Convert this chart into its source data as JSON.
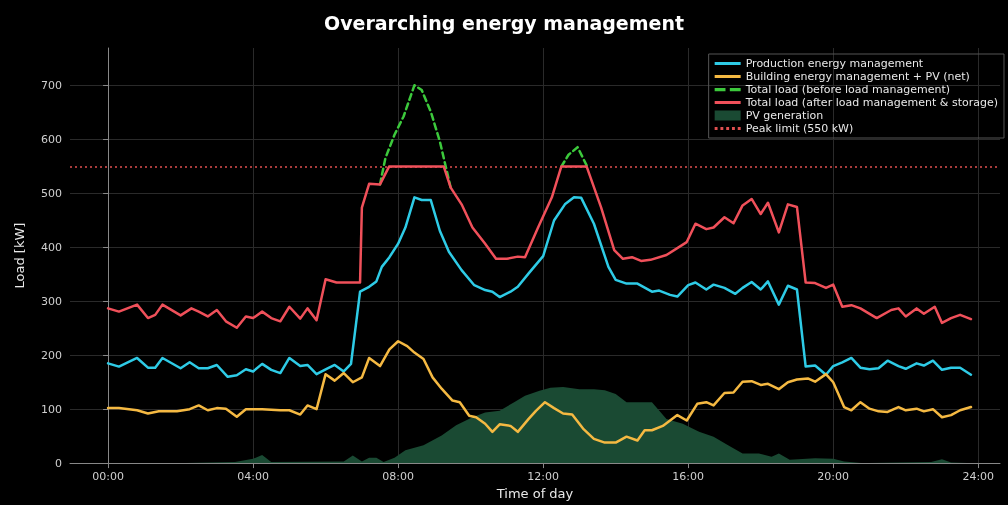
{
  "chart_data": {
    "type": "line",
    "title": "Overarching energy management",
    "xlabel": "Time of day",
    "ylabel": "Load [kW]",
    "xlim": [
      -1.05,
      24.6
    ],
    "ylim": [
      0,
      770
    ],
    "xticks": [
      {
        "value": 0,
        "label": "00:00"
      },
      {
        "value": 4,
        "label": "04:00"
      },
      {
        "value": 8,
        "label": "08:00"
      },
      {
        "value": 12,
        "label": "12:00"
      },
      {
        "value": 16,
        "label": "16:00"
      },
      {
        "value": 20,
        "label": "20:00"
      },
      {
        "value": 24,
        "label": "24:00"
      }
    ],
    "yticks": [
      0,
      100,
      200,
      300,
      400,
      500,
      600,
      700
    ],
    "grid": true,
    "legend": "top right",
    "marker": "none",
    "ref_lines": [
      {
        "axis": "y",
        "value": 550,
        "label": "Peak limit (550 kW)",
        "color": "#e05050",
        "line_style": "dotted"
      }
    ],
    "series": [
      {
        "name": "Production energy management",
        "type": "line",
        "color": "#2ecbe6",
        "x": [
          0,
          0.3,
          0.8,
          1.1,
          1.3,
          1.5,
          2.0,
          2.25,
          2.5,
          2.75,
          3.0,
          3.3,
          3.55,
          3.8,
          4.0,
          4.25,
          4.5,
          4.75,
          5.0,
          5.3,
          5.5,
          5.75,
          6.0,
          6.25,
          6.5,
          6.7,
          6.95,
          7.2,
          7.4,
          7.55,
          7.76,
          8.0,
          8.2,
          8.45,
          8.65,
          8.9,
          9.15,
          9.4,
          9.75,
          10.1,
          10.4,
          10.6,
          10.8,
          11.1,
          11.3,
          11.6,
          12.0,
          12.3,
          12.6,
          12.85,
          13.05,
          13.4,
          13.8,
          14.0,
          14.3,
          14.6,
          15.0,
          15.2,
          15.5,
          15.7,
          16.0,
          16.2,
          16.5,
          16.7,
          17.0,
          17.3,
          17.5,
          17.75,
          18.0,
          18.2,
          18.5,
          18.75,
          19.0,
          19.24,
          19.5,
          19.8,
          20.0,
          20.25,
          20.5,
          20.75,
          21.0,
          21.25,
          21.5,
          21.8,
          22.0,
          22.3,
          22.5,
          22.75,
          23.0,
          23.25,
          23.5,
          23.8
        ],
        "values": [
          185,
          179,
          195,
          177,
          177,
          195,
          176,
          187,
          176,
          176,
          182,
          160,
          163,
          174,
          170,
          184,
          173,
          167,
          195,
          180,
          182,
          165,
          174,
          182,
          170,
          184,
          318,
          327,
          337,
          364,
          382,
          407,
          437,
          493,
          488,
          488,
          431,
          392,
          358,
          330,
          321,
          318,
          308,
          318,
          327,
          352,
          384,
          450,
          480,
          493,
          492,
          444,
          364,
          340,
          333,
          333,
          318,
          320,
          312,
          309,
          330,
          335,
          322,
          331,
          325,
          314,
          325,
          336,
          322,
          337,
          294,
          329,
          322,
          179,
          181,
          164,
          180,
          187,
          195,
          177,
          174,
          176,
          190,
          180,
          175,
          185,
          181,
          190,
          173,
          177,
          177,
          164
        ]
      },
      {
        "name": "Building energy management + PV (net)",
        "type": "line",
        "color": "#f5b942",
        "x": [
          0,
          0.3,
          0.8,
          1.1,
          1.4,
          1.9,
          2.25,
          2.5,
          2.75,
          3.0,
          3.25,
          3.55,
          3.8,
          4.25,
          4.75,
          5.0,
          5.3,
          5.5,
          5.75,
          6.0,
          6.25,
          6.5,
          6.75,
          7.0,
          7.2,
          7.5,
          7.76,
          8.0,
          8.25,
          8.45,
          8.7,
          8.95,
          9.2,
          9.5,
          9.7,
          9.96,
          10.15,
          10.4,
          10.6,
          10.8,
          11.1,
          11.3,
          11.6,
          11.8,
          12.05,
          12.3,
          12.55,
          12.8,
          13.1,
          13.4,
          13.7,
          14.0,
          14.3,
          14.6,
          14.8,
          15.0,
          15.3,
          15.7,
          15.96,
          16.25,
          16.5,
          16.7,
          17.0,
          17.25,
          17.5,
          17.75,
          18.0,
          18.2,
          18.5,
          18.75,
          19.0,
          19.3,
          19.5,
          19.8,
          20.0,
          20.3,
          20.5,
          20.75,
          21.0,
          21.25,
          21.5,
          21.8,
          22.0,
          22.3,
          22.5,
          22.75,
          23.0,
          23.25,
          23.5,
          23.8
        ],
        "values": [
          102,
          102,
          98,
          92,
          96,
          96,
          100,
          107,
          98,
          102,
          101,
          86,
          100,
          100,
          98,
          98,
          90,
          107,
          100,
          165,
          153,
          167,
          150,
          159,
          195,
          180,
          211,
          226,
          217,
          205,
          193,
          159,
          138,
          116,
          113,
          88,
          85,
          73,
          58,
          72,
          69,
          58,
          82,
          97,
          113,
          102,
          92,
          90,
          64,
          45,
          38,
          38,
          49,
          42,
          61,
          61,
          69,
          89,
          79,
          110,
          113,
          107,
          130,
          131,
          151,
          152,
          145,
          147,
          137,
          150,
          155,
          157,
          151,
          165,
          150,
          104,
          98,
          113,
          101,
          96,
          95,
          104,
          98,
          101,
          96,
          100,
          85,
          89,
          98,
          104
        ]
      },
      {
        "name": "Total load (before load management)",
        "type": "line",
        "color": "#3cc93c",
        "line_style": "dashed",
        "x": [
          7.5,
          7.65,
          7.9,
          8.15,
          8.45,
          8.65,
          8.9,
          9.15,
          9.45,
          11.0,
          12.5,
          12.7,
          12.95,
          13.2
        ],
        "values": [
          517,
          566,
          609,
          643,
          701,
          692,
          652,
          597,
          511,
          null,
          550,
          572,
          586,
          552
        ]
      },
      {
        "name": "Total load (after load management & storage)",
        "type": "line",
        "color": "#f0505a",
        "x": [
          0,
          0.3,
          0.8,
          1.1,
          1.3,
          1.5,
          2.0,
          2.3,
          2.5,
          2.75,
          3.0,
          3.25,
          3.55,
          3.8,
          4.0,
          4.25,
          4.5,
          4.75,
          5.0,
          5.3,
          5.5,
          5.75,
          6.0,
          6.3,
          6.7,
          6.95,
          7.0,
          7.2,
          7.5,
          7.75,
          9.26,
          9.45,
          9.75,
          10.05,
          10.4,
          10.7,
          11.0,
          11.3,
          11.5,
          11.86,
          12.24,
          12.5,
          13.2,
          13.6,
          13.96,
          14.2,
          14.45,
          14.7,
          14.96,
          15.4,
          15.96,
          16.2,
          16.5,
          16.7,
          17.0,
          17.25,
          17.5,
          17.75,
          18.0,
          18.2,
          18.5,
          18.75,
          19.0,
          19.24,
          19.5,
          19.8,
          20.0,
          20.25,
          20.5,
          20.75,
          21.2,
          21.6,
          21.8,
          22.0,
          22.3,
          22.5,
          22.8,
          23.0,
          23.25,
          23.5,
          23.8
        ],
        "values": [
          287,
          281,
          294,
          269,
          275,
          294,
          274,
          287,
          281,
          272,
          284,
          263,
          251,
          272,
          269,
          281,
          269,
          263,
          290,
          268,
          287,
          265,
          341,
          335,
          335,
          335,
          474,
          518,
          517,
          550,
          550,
          511,
          480,
          437,
          407,
          379,
          379,
          383,
          382,
          437,
          493,
          550,
          550,
          474,
          395,
          379,
          382,
          375,
          377,
          386,
          410,
          444,
          434,
          437,
          456,
          445,
          478,
          490,
          462,
          483,
          428,
          480,
          475,
          335,
          334,
          325,
          331,
          290,
          293,
          287,
          269,
          284,
          287,
          272,
          287,
          277,
          290,
          260,
          269,
          275,
          267
        ]
      },
      {
        "name": "PV generation",
        "type": "area",
        "color": "#1a4a33",
        "x": [
          0,
          2.0,
          3.5,
          4.0,
          4.25,
          4.5,
          6.5,
          6.75,
          7.0,
          7.2,
          7.4,
          7.6,
          7.9,
          8.2,
          8.7,
          9.2,
          9.6,
          10.05,
          10.4,
          10.8,
          11.2,
          11.5,
          11.9,
          12.2,
          12.55,
          13.0,
          13.4,
          13.7,
          14.0,
          14.3,
          14.7,
          15.0,
          15.4,
          15.85,
          16.3,
          16.7,
          17.1,
          17.5,
          17.95,
          18.3,
          18.5,
          18.8,
          19.5,
          20.0,
          20.3,
          20.8,
          22.7,
          23.0,
          23.25,
          23.8
        ],
        "values": [
          0,
          0,
          2,
          8,
          15,
          2,
          3,
          14,
          3,
          10,
          10,
          2,
          10,
          24,
          33,
          51,
          70,
          85,
          94,
          97,
          113,
          125,
          134,
          140,
          141,
          137,
          137,
          135,
          128,
          113,
          113,
          113,
          82,
          73,
          58,
          49,
          33,
          18,
          18,
          12,
          18,
          6,
          9,
          8,
          3,
          0,
          2,
          7,
          1,
          0
        ]
      }
    ]
  }
}
